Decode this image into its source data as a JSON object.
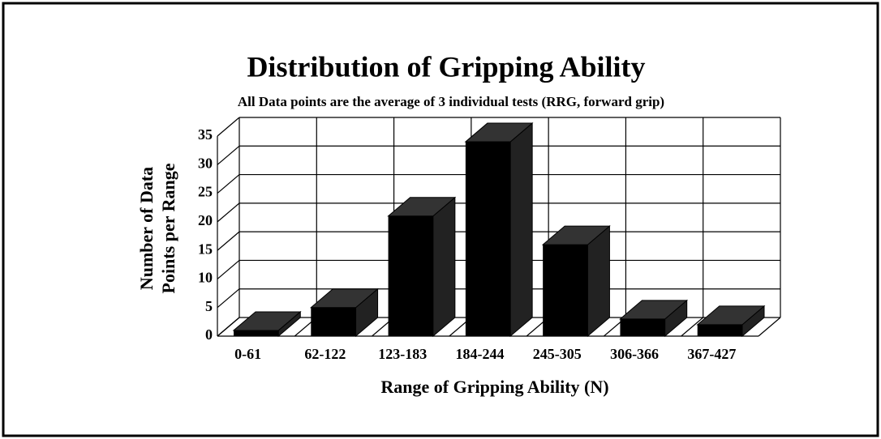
{
  "chart_data": {
    "type": "bar",
    "title": "Distribution of Gripping Ability",
    "subtitle": "All Data points are the average of 3 individual tests (RRG, forward grip)",
    "xlabel": "Range of Gripping Ability (N)",
    "ylabel": [
      "Number of Data",
      "Points per Range"
    ],
    "categories": [
      "0-61",
      "62-122",
      "123-183",
      "184-244",
      "245-305",
      "306-366",
      "367-427"
    ],
    "values": [
      1,
      5,
      21,
      34,
      16,
      3,
      2
    ],
    "color": "#000000",
    "ylim": [
      0,
      35
    ],
    "yticks": [
      0,
      5,
      10,
      15,
      20,
      25,
      30,
      35
    ],
    "grid": true
  }
}
